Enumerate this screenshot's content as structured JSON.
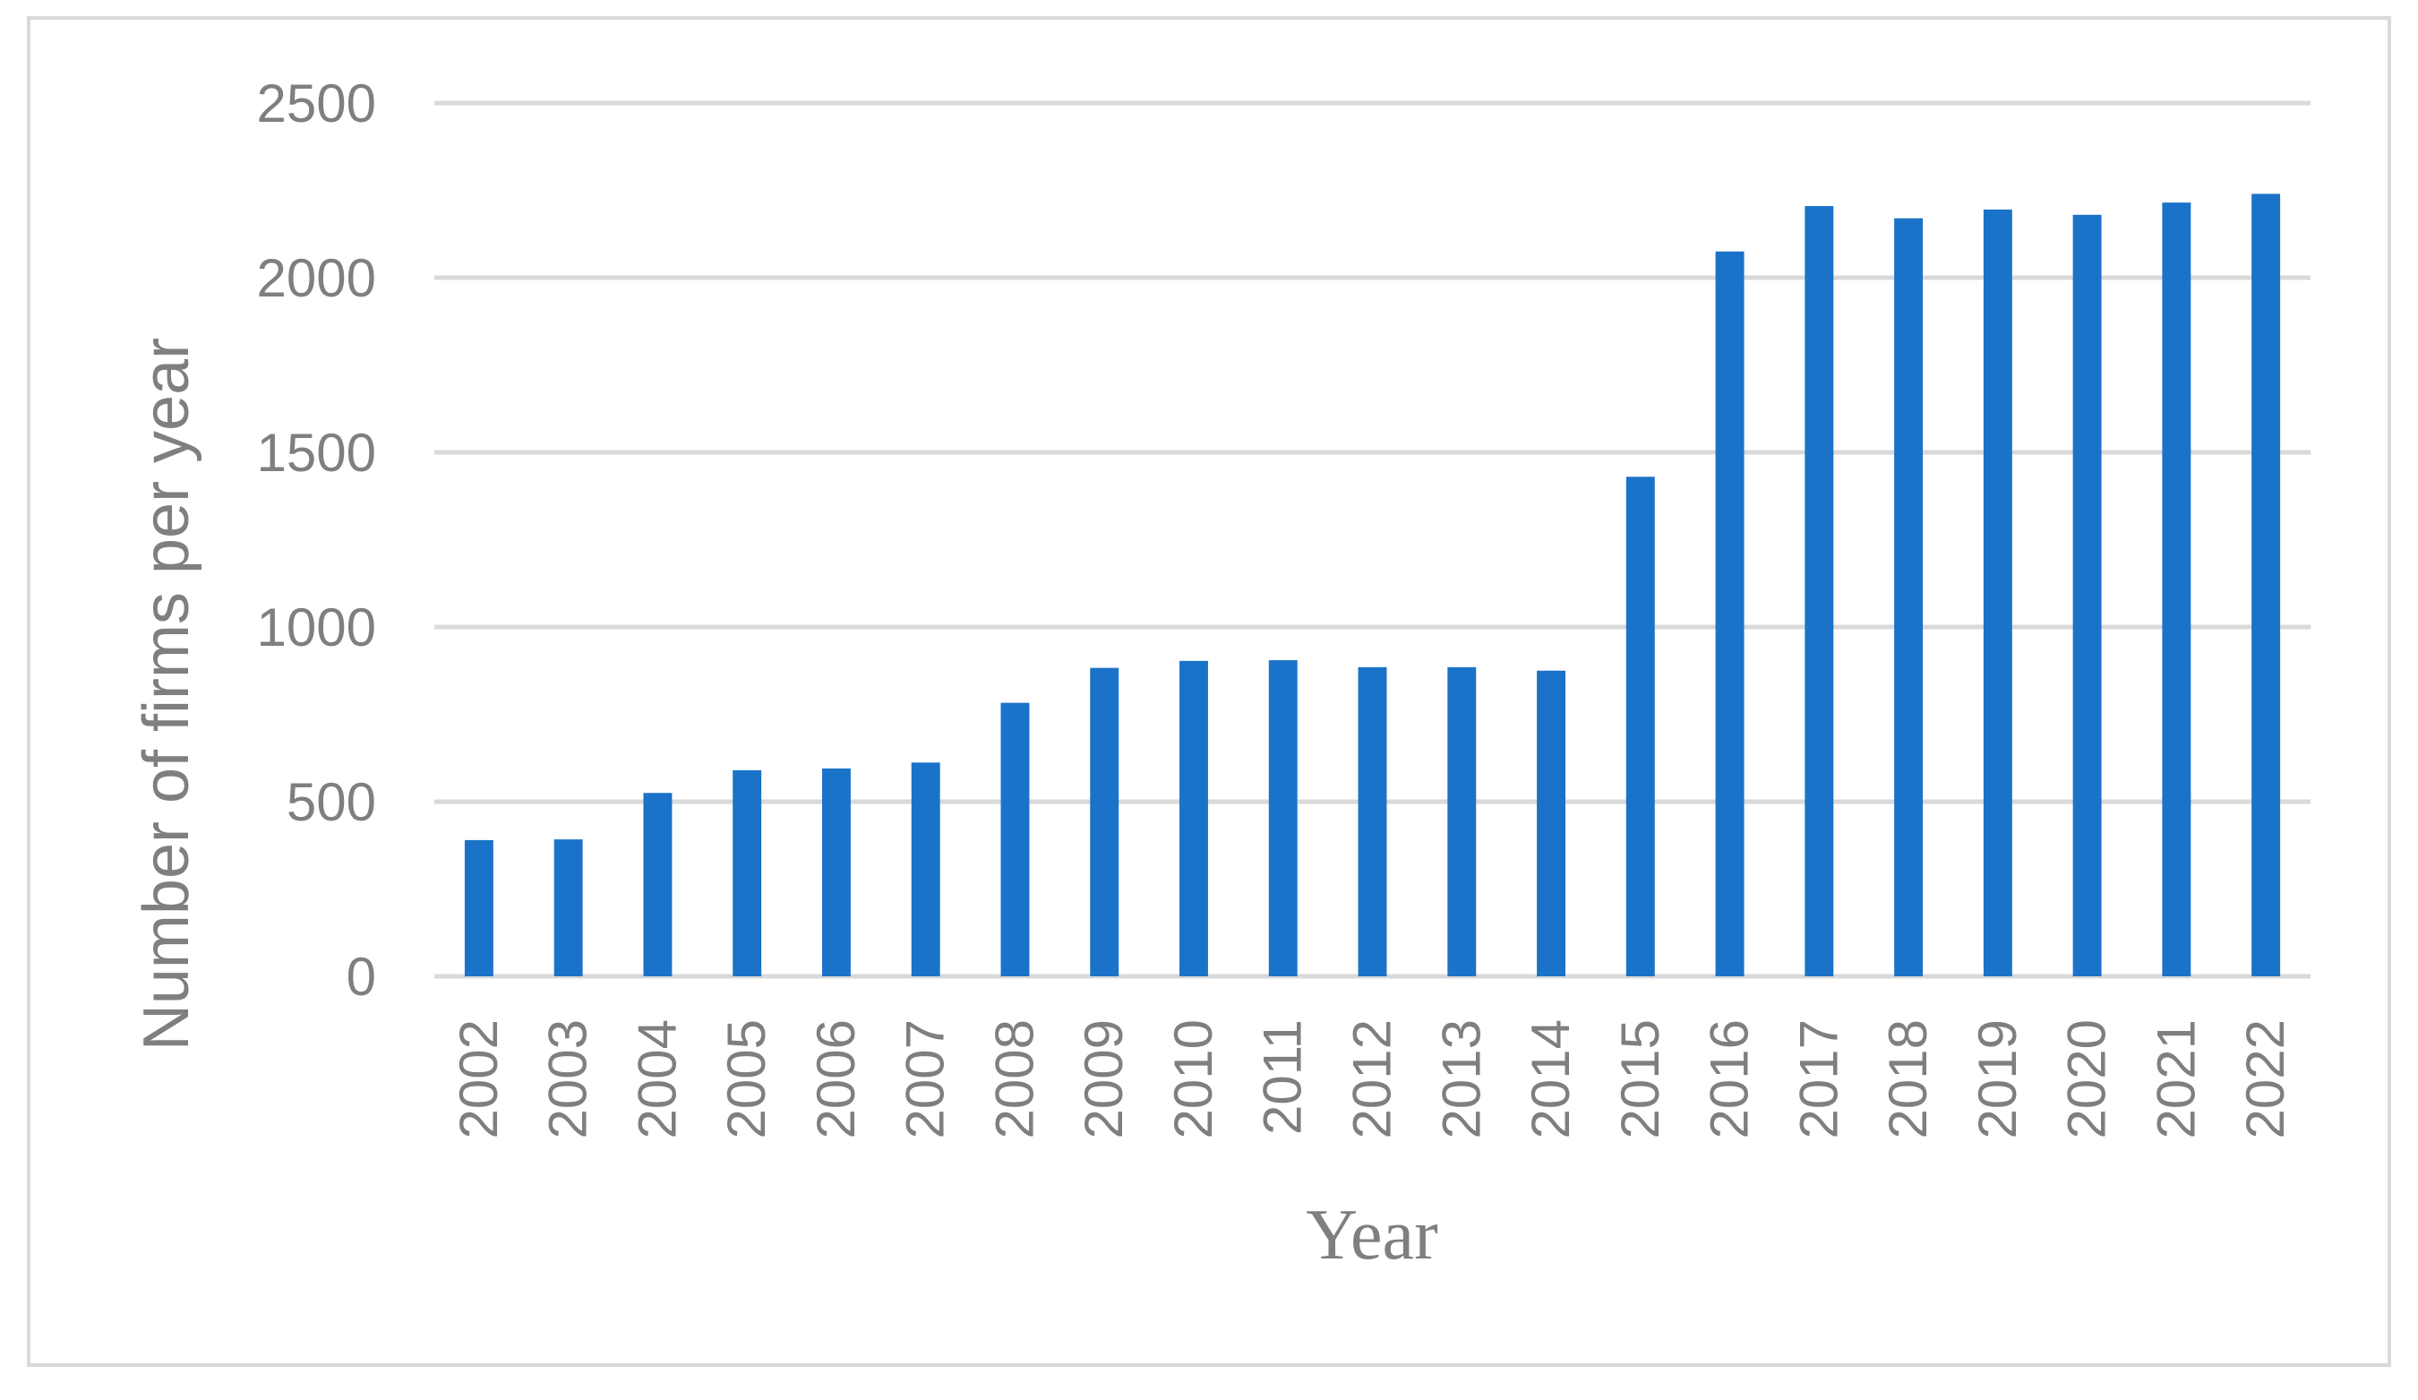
{
  "chart_data": {
    "type": "bar",
    "title": "",
    "xlabel": "Year",
    "ylabel": "Number of firms per year",
    "categories": [
      "2002",
      "2003",
      "2004",
      "2005",
      "2006",
      "2007",
      "2008",
      "2009",
      "2010",
      "2011",
      "2012",
      "2013",
      "2014",
      "2015",
      "2016",
      "2017",
      "2018",
      "2019",
      "2020",
      "2021",
      "2022"
    ],
    "values": [
      390,
      392,
      525,
      590,
      595,
      612,
      783,
      883,
      903,
      905,
      885,
      885,
      875,
      1430,
      2075,
      2205,
      2170,
      2195,
      2180,
      2215,
      2240
    ],
    "ylim": [
      0,
      2500
    ],
    "yticks": [
      0,
      500,
      1000,
      1500,
      2000,
      2500
    ],
    "grid": true,
    "legend": "none",
    "bar_color": "#1a73c8",
    "grid_color": "#d9d9d9",
    "text_color": "#7f7f7f"
  }
}
